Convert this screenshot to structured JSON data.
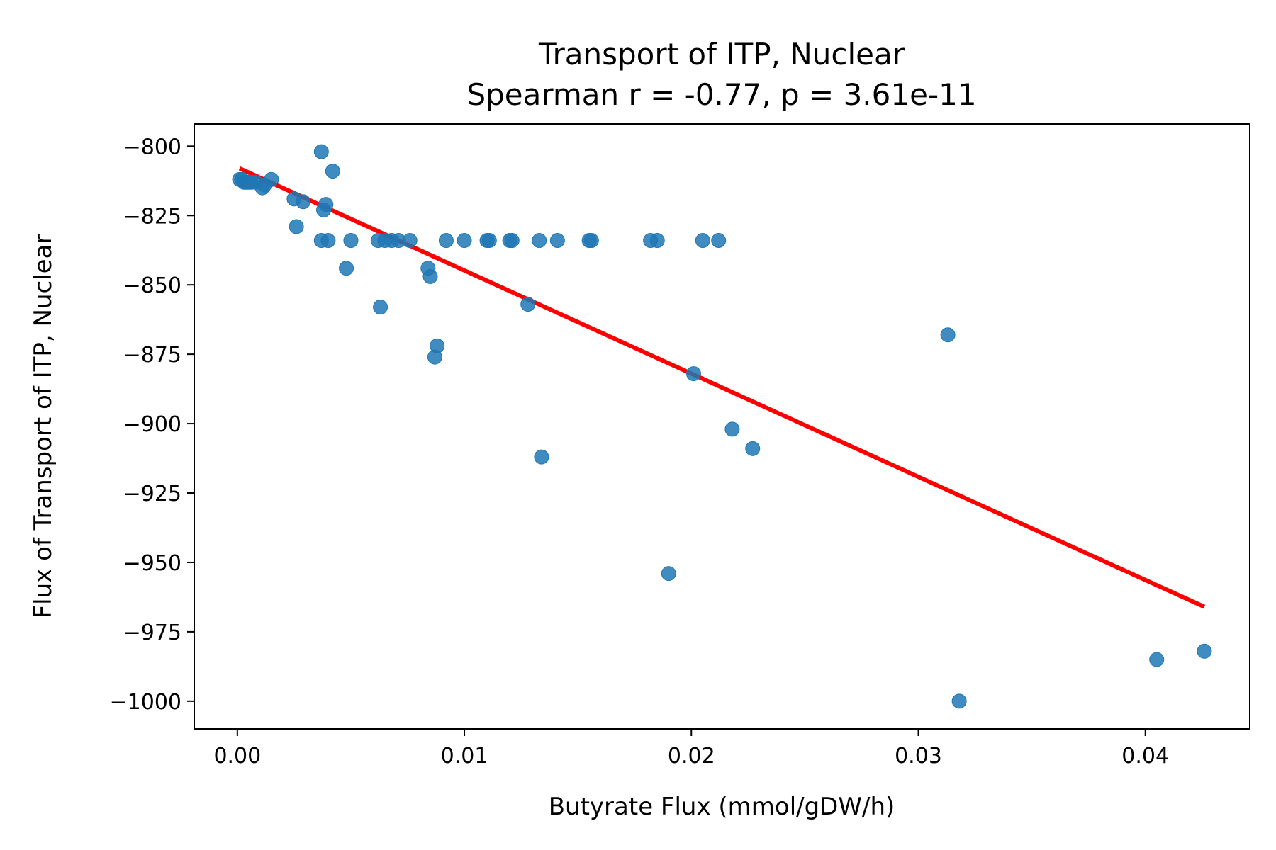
{
  "chart_data": {
    "type": "scatter",
    "title": "Transport of ITP, Nuclear",
    "subtitle": "Spearman r = -0.77, p = 3.61e-11",
    "xlabel": "Butyrate Flux (mmol/gDW/h)",
    "ylabel": "Flux of Transport of ITP, Nuclear",
    "xlim": [
      -0.0019,
      0.0446
    ],
    "ylim": [
      -1010,
      -792
    ],
    "xticks": [
      0.0,
      0.01,
      0.02,
      0.03,
      0.04
    ],
    "xtick_labels": [
      "0.00",
      "0.01",
      "0.02",
      "0.03",
      "0.04"
    ],
    "yticks": [
      -800,
      -825,
      -850,
      -875,
      -900,
      -925,
      -950,
      -975,
      -1000
    ],
    "ytick_labels": [
      "−800",
      "−825",
      "−850",
      "−875",
      "−900",
      "−925",
      "−950",
      "−975",
      "−1000"
    ],
    "grid": false,
    "colors": {
      "points": "#1f77b4",
      "fit_line": "#ff0000"
    },
    "series": [
      {
        "kind": "points",
        "points": [
          [
            0.0001,
            -812
          ],
          [
            0.0002,
            -812
          ],
          [
            0.0003,
            -813
          ],
          [
            0.0004,
            -813
          ],
          [
            0.0005,
            -813
          ],
          [
            0.0006,
            -813
          ],
          [
            0.0008,
            -813
          ],
          [
            0.0011,
            -815
          ],
          [
            0.0012,
            -814
          ],
          [
            0.0015,
            -812
          ],
          [
            0.0025,
            -819
          ],
          [
            0.0026,
            -829
          ],
          [
            0.0029,
            -820
          ],
          [
            0.0037,
            -834
          ],
          [
            0.0037,
            -802
          ],
          [
            0.0038,
            -823
          ],
          [
            0.0039,
            -821
          ],
          [
            0.004,
            -834
          ],
          [
            0.0042,
            -809
          ],
          [
            0.0048,
            -844
          ],
          [
            0.005,
            -834
          ],
          [
            0.0062,
            -834
          ],
          [
            0.0063,
            -858
          ],
          [
            0.0065,
            -834
          ],
          [
            0.0068,
            -834
          ],
          [
            0.0071,
            -834
          ],
          [
            0.0076,
            -834
          ],
          [
            0.0084,
            -844
          ],
          [
            0.0085,
            -847
          ],
          [
            0.0087,
            -876
          ],
          [
            0.0088,
            -872
          ],
          [
            0.0092,
            -834
          ],
          [
            0.01,
            -834
          ],
          [
            0.011,
            -834
          ],
          [
            0.0111,
            -834
          ],
          [
            0.012,
            -834
          ],
          [
            0.0121,
            -834
          ],
          [
            0.0128,
            -857
          ],
          [
            0.0133,
            -834
          ],
          [
            0.0134,
            -912
          ],
          [
            0.0141,
            -834
          ],
          [
            0.0155,
            -834
          ],
          [
            0.0156,
            -834
          ],
          [
            0.0182,
            -834
          ],
          [
            0.0185,
            -834
          ],
          [
            0.019,
            -954
          ],
          [
            0.0201,
            -882
          ],
          [
            0.0205,
            -834
          ],
          [
            0.0212,
            -834
          ],
          [
            0.0218,
            -902
          ],
          [
            0.0227,
            -909
          ],
          [
            0.0313,
            -868
          ],
          [
            0.0318,
            -1000
          ],
          [
            0.0405,
            -985
          ],
          [
            0.0426,
            -982
          ]
        ]
      },
      {
        "kind": "fit_line",
        "points": [
          [
            0.0001,
            -808
          ],
          [
            0.0426,
            -966
          ]
        ]
      }
    ]
  }
}
